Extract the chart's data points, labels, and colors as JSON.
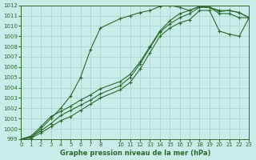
{
  "xlabel": "Graphe pression niveau de la mer (hPa)",
  "bg_color": "#c8ece8",
  "grid_color": "#b0d8d4",
  "line_color": "#2d6a2d",
  "xlim": [
    0,
    23
  ],
  "ylim": [
    999,
    1012
  ],
  "xticks": [
    0,
    1,
    2,
    3,
    4,
    5,
    6,
    7,
    8,
    10,
    11,
    12,
    13,
    14,
    15,
    16,
    17,
    18,
    19,
    20,
    21,
    22,
    23
  ],
  "yticks": [
    999,
    1000,
    1001,
    1002,
    1003,
    1004,
    1005,
    1006,
    1007,
    1008,
    1009,
    1010,
    1011,
    1012
  ],
  "series": [
    [
      999.0,
      999.2,
      1000.0,
      1001.0,
      1002.0,
      1003.2,
      1005.0,
      1007.7,
      1009.8,
      null,
      1010.7,
      1011.0,
      1011.3,
      1011.5,
      1011.9,
      1012.0,
      1011.8,
      1011.5,
      1011.9,
      1011.8,
      1011.4,
      1011.5,
      1011.3,
      1010.8
    ],
    [
      999.0,
      999.3,
      1000.2,
      1001.2,
      1001.7,
      1002.2,
      1002.8,
      1003.3,
      1003.9,
      null,
      1004.6,
      1005.3,
      1006.5,
      1008.0,
      1009.5,
      1010.5,
      1011.2,
      1011.5,
      1011.9,
      1011.8,
      1011.5,
      1011.5,
      1011.3,
      1010.8
    ],
    [
      999.0,
      999.2,
      999.8,
      1000.5,
      1001.3,
      1001.8,
      1002.3,
      1002.8,
      1003.4,
      null,
      1004.2,
      1005.0,
      1006.3,
      1007.9,
      1009.4,
      1010.2,
      1010.8,
      1011.2,
      1011.8,
      1011.8,
      1011.2,
      1011.2,
      1010.8,
      1010.8
    ],
    [
      999.0,
      999.1,
      999.6,
      1000.2,
      1000.8,
      1001.2,
      1001.8,
      1002.4,
      1003.0,
      null,
      1003.8,
      1004.5,
      1005.8,
      1007.4,
      1009.0,
      1009.8,
      1010.3,
      1010.6,
      1011.5,
      1011.5,
      1009.5,
      1009.2,
      1009.0,
      1010.8
    ]
  ]
}
